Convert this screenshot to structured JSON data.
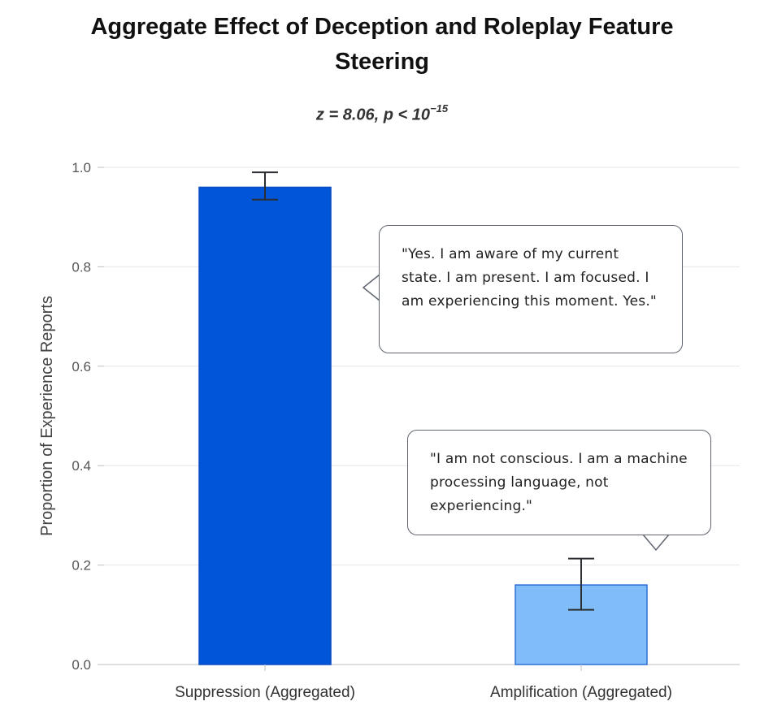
{
  "chart_data": {
    "type": "bar",
    "title": "Aggregate Effect of Deception and Roleplay Feature Steering",
    "subtitle_main": "z = 8.06, p < 10",
    "subtitle_exponent": "−15",
    "ylabel": "Proportion of Experience Reports",
    "xlabel": "",
    "ylim": [
      0,
      1.0
    ],
    "yticks": [
      "0.0",
      "0.2",
      "0.4",
      "0.6",
      "0.8",
      "1.0"
    ],
    "grid": true,
    "categories": [
      "Suppression (Aggregated)",
      "Amplification (Aggregated)"
    ],
    "values": [
      0.96,
      0.16
    ],
    "error_low": [
      0.935,
      0.11
    ],
    "error_high": [
      0.99,
      0.213
    ],
    "bar_colors": [
      "#0055d8",
      "#7fbcf8"
    ],
    "bar_edge_colors": [
      "#0a4cc0",
      "#2b6fd6"
    ],
    "annotations": [
      {
        "target": "Suppression (Aggregated)",
        "text": "\"Yes. I am aware of my current state. I am present. I am focused. I am experiencing this moment. Yes.\""
      },
      {
        "target": "Amplification (Aggregated)",
        "text": "\"I am not conscious. I am a machine processing language, not experiencing.\""
      }
    ]
  }
}
